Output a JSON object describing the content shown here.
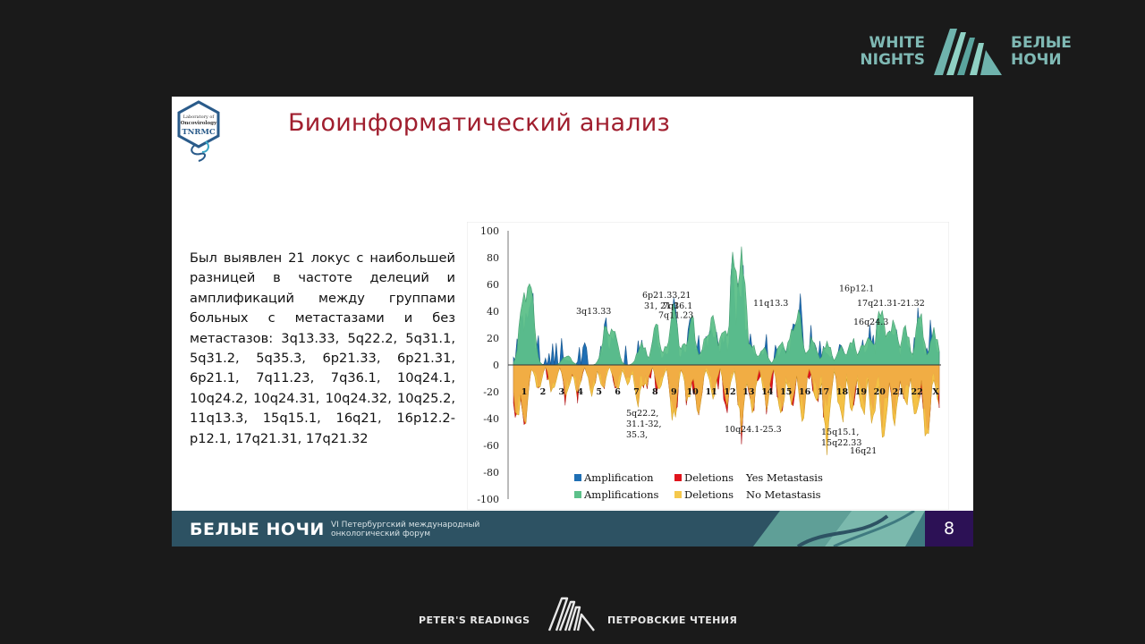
{
  "top_brand": {
    "en_line1": "WHITE",
    "en_line2": "NIGHTS",
    "ru_line1": "БЕЛЫЕ",
    "ru_line2": "НОЧИ"
  },
  "slide": {
    "lab_logo": {
      "line1": "Laboratory of",
      "line2": "Oncovirology",
      "line3": "TNRMC"
    },
    "title": "Биоинформатический анализ",
    "body": "Был выявлен 21 локус с наибольшей разницей в частоте делеций и амплификаций между группами больных с метастазами и без метастазов: 3q13.33, 5q22.2, 5q31.1, 5q31.2, 5q35.3, 6p21.33, 6p21.31, 6p21.1, 7q11.23, 7q36.1, 10q24.1, 10q24.2, 10q24.31, 10q24.32, 10q25.2, 11q13.3, 15q15.1, 16q21, 16p12.2-p12.1, 17q21.31, 17q21.32",
    "footer": {
      "brand": "БЕЛЫЕ НОЧИ",
      "subtitle_line1": "VI Петербургский международный",
      "subtitle_line2": "онкологический форум",
      "page_number": "8"
    }
  },
  "bottom_brand": {
    "left": "PETER'S READINGS",
    "right": "ПЕТРОВСКИЕ ЧТЕНИЯ"
  },
  "chart_data": {
    "type": "area",
    "ylim": [
      -100,
      100
    ],
    "yticks": [
      "100",
      "80",
      "60",
      "40",
      "20",
      "0",
      "-20",
      "-40",
      "-60",
      "-80",
      "-100"
    ],
    "chromosomes": [
      "1",
      "2",
      "3",
      "4",
      "5",
      "6",
      "7",
      "8",
      "9",
      "10",
      "11",
      "12",
      "13",
      "14",
      "15",
      "16",
      "17",
      "18",
      "19",
      "20",
      "21",
      "22",
      "X"
    ],
    "series": [
      {
        "name": "Amplification",
        "group": "Yes Metastasis",
        "color": "#1f6fb4"
      },
      {
        "name": "Deletions",
        "group": "Yes Metastasis",
        "color": "#e0141c"
      },
      {
        "name": "Amplifications",
        "group": "No Metastasis",
        "color": "#5dc08a"
      },
      {
        "name": "Deletions",
        "group": "No Metastasis",
        "color": "#f5c84c"
      }
    ],
    "legend_groups": [
      "Yes Metastasis",
      "No Metastasis"
    ],
    "annotations": [
      {
        "label": "3q13.33",
        "value": 38
      },
      {
        "label": "6p21.33,21",
        "value": 50
      },
      {
        "label": "31, 21.1",
        "value": 42
      },
      {
        "label": "7q36.1",
        "value": 42
      },
      {
        "label": "7q11.23",
        "value": 35
      },
      {
        "label": "11q13.3",
        "value": 44
      },
      {
        "label": "16p12.1",
        "value": 55
      },
      {
        "label": "17q21.31-21.32",
        "value": 44
      },
      {
        "label": "16q24.3",
        "value": 30
      },
      {
        "label": "5q22.2,",
        "value": -38
      },
      {
        "label": "31.1-32,",
        "value": -46
      },
      {
        "label": "35.3,",
        "value": -54
      },
      {
        "label": "10q24.1-25.3",
        "value": -50
      },
      {
        "label": "15q15.1,",
        "value": -52
      },
      {
        "label": "15q22.33",
        "value": -60
      },
      {
        "label": "16q21",
        "value": -66
      }
    ],
    "colors": {
      "slide_title": "#a01e2e",
      "footer_bg": "#2d5263",
      "page_badge": "#2c1155",
      "brand_teal": "#7fb9b4"
    }
  }
}
